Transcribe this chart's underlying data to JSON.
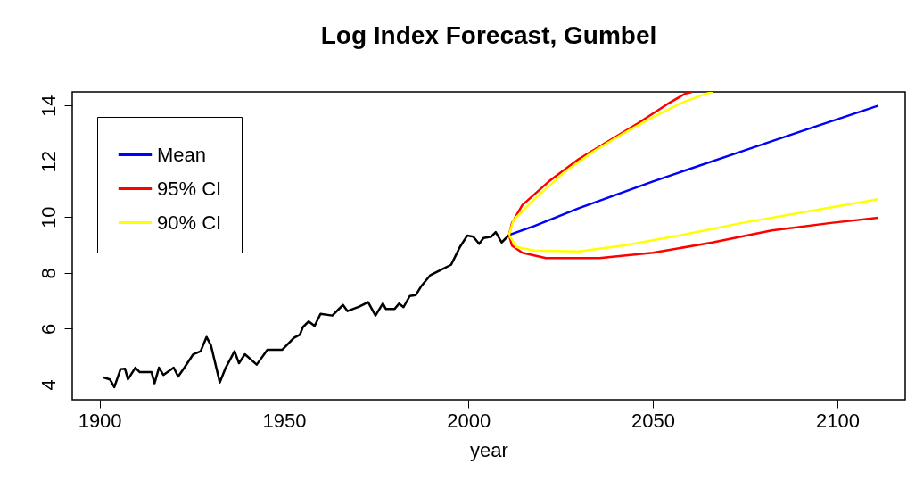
{
  "chart_data": {
    "type": "line",
    "title": "Log Index Forecast, Gumbel",
    "xlabel": "year",
    "xlim": [
      1892.6,
      2118.4
    ],
    "ylim": [
      3.45,
      14.49
    ],
    "xticks": [
      1900,
      1950,
      2000,
      2050,
      2100
    ],
    "yticks": [
      4,
      6,
      8,
      10,
      12,
      14
    ],
    "grid": false,
    "legend": "top left",
    "marker": "none",
    "line_style": "solid",
    "series": [
      {
        "color": "#000000",
        "x": [
          1901.1,
          1902.8,
          1904,
          1905.7,
          1906.9,
          1907.7,
          1909.7,
          1910.9,
          1914.1,
          1914.9,
          1916.1,
          1917.3,
          1920.1,
          1921.3,
          1923,
          1925.4,
          1927.4,
          1929,
          1930.2,
          1932.6,
          1934.2,
          1936.6,
          1937.8,
          1939.4,
          1942.6,
          1945.5,
          1949.5,
          1952.7,
          1954.3,
          1955.1,
          1956.7,
          1958.3,
          1959.9,
          1963.1,
          1966,
          1967.2,
          1970.4,
          1972.8,
          1974.8,
          1976.8,
          1977.6,
          1980,
          1981.2,
          1982.4,
          1984.1,
          1985.7,
          1987.3,
          1989.7,
          1992.1,
          1995.3,
          1997.7,
          1999.7,
          2001.3,
          2002.9,
          2004.1,
          2006.2,
          2007.4,
          2009,
          2011
        ],
        "values": [
          4.25,
          4.18,
          3.9,
          4.55,
          4.56,
          4.18,
          4.6,
          4.44,
          4.44,
          4.04,
          4.6,
          4.34,
          4.6,
          4.28,
          4.6,
          5.08,
          5.19,
          5.7,
          5.4,
          4.07,
          4.6,
          5.19,
          4.76,
          5.08,
          4.71,
          5.24,
          5.24,
          5.67,
          5.78,
          6.05,
          6.26,
          6.1,
          6.53,
          6.47,
          6.85,
          6.63,
          6.79,
          6.95,
          6.47,
          6.9,
          6.71,
          6.71,
          6.9,
          6.77,
          7.17,
          7.2,
          7.54,
          7.92,
          8.08,
          8.29,
          8.93,
          9.34,
          9.3,
          9.04,
          9.25,
          9.3,
          9.46,
          9.09,
          9.36
        ]
      },
      {
        "name": "Mean",
        "color": "#0000ff",
        "x": [
          2011,
          2017.8,
          2029.9,
          2050,
          2074.1,
          2090.2,
          2111.1
        ],
        "values": [
          9.36,
          9.68,
          10.32,
          11.28,
          12.36,
          13.08,
          14.0
        ]
      },
      {
        "name": "95% CI",
        "color": "#ff0000",
        "x": [
          2011,
          2011.8,
          2014.6,
          2021.8,
          2029.9,
          2037.9,
          2046,
          2054,
          2058.8,
          2060.5,
          null,
          2011,
          2011.8,
          2014.6,
          2021,
          2035.5,
          2050,
          2066.1,
          2082.2,
          2098.2,
          2111.1
        ],
        "values": [
          9.36,
          9.79,
          10.43,
          11.28,
          12.08,
          12.72,
          13.37,
          14.06,
          14.43,
          14.48,
          null,
          9.36,
          8.98,
          8.72,
          8.53,
          8.53,
          8.72,
          9.09,
          9.52,
          9.79,
          9.98
        ]
      },
      {
        "name": "90% CI",
        "color": "#ffff00",
        "x": [
          2011,
          2012.2,
          2017.8,
          2025.9,
          2033.9,
          2041.9,
          2050,
          2058,
          2064.5,
          2066.3,
          null,
          2011,
          2013,
          2017.8,
          2029.9,
          2041.9,
          2058,
          2074.1,
          2090.2,
          2111.1
        ],
        "values": [
          9.36,
          9.89,
          10.64,
          11.6,
          12.35,
          12.99,
          13.58,
          14.11,
          14.43,
          14.48,
          null,
          9.36,
          8.93,
          8.8,
          8.77,
          8.98,
          9.36,
          9.79,
          10.16,
          10.64
        ]
      }
    ]
  }
}
